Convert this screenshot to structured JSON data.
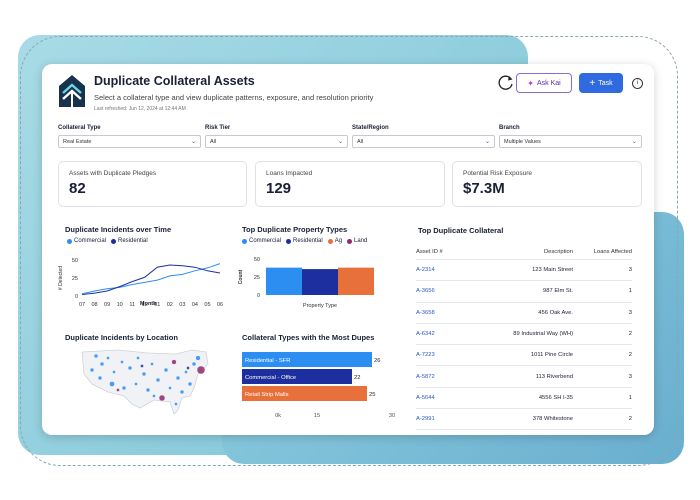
{
  "header": {
    "title": "Duplicate Collateral Assets",
    "subtitle": "Select a collateral type and view duplicate patterns, exposure, and resolution priority",
    "refreshed": "Last refreshed: Jun 12, 2024 at 12:44 AM",
    "ask_kai_label": "Ask Kai",
    "task_label": "Task"
  },
  "filters": [
    {
      "label": "Collateral Type",
      "value": "Real Estate"
    },
    {
      "label": "Risk Tier",
      "value": "All"
    },
    {
      "label": "State/Region",
      "value": "All"
    },
    {
      "label": "Branch",
      "value": "Multiple Values"
    }
  ],
  "kpis": [
    {
      "label": "Assets with Duplicate Pledges",
      "value": "82"
    },
    {
      "label": "Loans Impacted",
      "value": "129"
    },
    {
      "label": "Potential Risk Exposure",
      "value": "$7.3M"
    }
  ],
  "colors": {
    "commercial": "#2b8ef0",
    "residential": "#1d2f9e",
    "ag": "#e8703a",
    "land": "#8e2a6e",
    "accent": "#2f6ae0"
  },
  "line_chart": {
    "title": "Duplicate Incidents over Time",
    "legend": [
      "Commercial",
      "Residential"
    ],
    "ylabel": "# Detected",
    "xlabel": "Month",
    "chart_data": {
      "type": "line",
      "categories": [
        "07",
        "08",
        "09",
        "10",
        "11",
        "12",
        "01",
        "02",
        "03",
        "04",
        "05",
        "06"
      ],
      "ylim": [
        0,
        50
      ],
      "yticks": [
        "50",
        "25",
        "0"
      ],
      "ytick_pos": [
        0,
        50,
        100
      ],
      "series": [
        {
          "name": "Commercial",
          "values": [
            3,
            7,
            10,
            12,
            16,
            19,
            22,
            28,
            30,
            35,
            39,
            45
          ]
        },
        {
          "name": "Residential",
          "values": [
            2,
            4,
            7,
            13,
            20,
            26,
            40,
            43,
            42,
            40,
            35,
            32
          ]
        }
      ]
    }
  },
  "bar_chart": {
    "title": "Top Duplicate Property Types",
    "legend": [
      "Commercial",
      "Residential",
      "Ag",
      "Land"
    ],
    "ylabel": "Count",
    "xlabel": "Property Type",
    "chart_data": {
      "type": "bar",
      "categories": [
        "Commercial",
        "Residential",
        "Ag"
      ],
      "values": [
        38,
        36,
        38
      ],
      "ylim": [
        0,
        50
      ],
      "yticks": [
        "50",
        "25",
        "0"
      ]
    }
  },
  "table": {
    "title": "Top Duplicate Collateral",
    "headers": [
      "Asset ID #",
      "Description",
      "Loans Affected"
    ],
    "rows": [
      [
        "A-2314",
        "123 Main Street",
        "3"
      ],
      [
        "A-3656",
        "987 Elm St.",
        "1"
      ],
      [
        "A-3658",
        "456 Oak Ave.",
        "3"
      ],
      [
        "A-6342",
        "89 Industrial Way (WH)",
        "2"
      ],
      [
        "A-7223",
        "1011 Pine Circle",
        "2"
      ],
      [
        "A-5872",
        "113 Riverbend",
        "3"
      ],
      [
        "A-5644",
        "4556 SH I-35",
        "1"
      ],
      [
        "A-2991",
        "378 Whitestone",
        "2"
      ]
    ]
  },
  "map": {
    "title": "Duplicate Incidents by Location"
  },
  "hbar_chart": {
    "title": "Collateral Types with the Most Dupes",
    "chart_data": {
      "type": "bar",
      "orientation": "horizontal",
      "categories": [
        "Residential - SFR",
        "Commercial - Office",
        "Retail Strip Malls"
      ],
      "values": [
        26,
        22,
        25
      ],
      "xlim": [
        0,
        30
      ],
      "xticks": [
        "0k",
        "15",
        "30"
      ]
    }
  }
}
